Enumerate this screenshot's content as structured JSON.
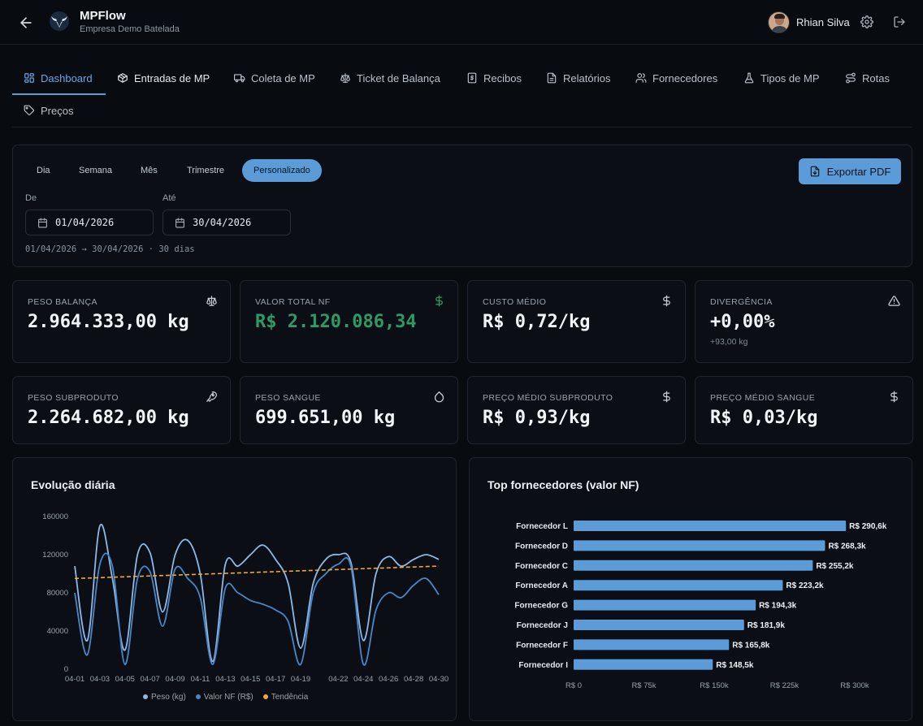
{
  "header": {
    "app_name": "MPFlow",
    "company": "Empresa Demo Batelada",
    "user_name": "Rhian Silva"
  },
  "nav": {
    "items": [
      {
        "label": "Dashboard",
        "icon": "layout-grid-icon",
        "active": true
      },
      {
        "label": "Entradas de MP",
        "icon": "package-icon"
      },
      {
        "label": "Coleta de MP",
        "icon": "truck-icon"
      },
      {
        "label": "Ticket de Balança",
        "icon": "scale-icon"
      },
      {
        "label": "Recibos",
        "icon": "receipt-icon"
      },
      {
        "label": "Relatórios",
        "icon": "file-text-icon"
      },
      {
        "label": "Fornecedores",
        "icon": "users-icon"
      },
      {
        "label": "Tipos de MP",
        "icon": "flask-icon"
      },
      {
        "label": "Rotas",
        "icon": "route-icon"
      },
      {
        "label": "Preços",
        "icon": "tag-icon"
      }
    ]
  },
  "filters": {
    "periods": [
      "Dia",
      "Semana",
      "Mês",
      "Trimestre",
      "Personalizado"
    ],
    "active_period": "Personalizado",
    "export_label": "Exportar PDF",
    "from_label": "De",
    "to_label": "Até",
    "from_value": "01/04/2026",
    "to_value": "30/04/2026",
    "range_summary": "01/04/2026 → 30/04/2026 · 30 dias"
  },
  "kpis": [
    {
      "label": "PESO BALANÇA",
      "value": "2.964.333,00 kg",
      "icon": "scale-icon"
    },
    {
      "label": "VALOR TOTAL NF",
      "value": "R$ 2.120.086,34",
      "icon": "dollar-icon",
      "accent": "#2f9a66"
    },
    {
      "label": "CUSTO MÉDIO",
      "value": "R$ 0,72/kg",
      "icon": "dollar-icon"
    },
    {
      "label": "DIVERGÊNCIA",
      "value": "+0,00%",
      "sub": "+93,00 kg",
      "icon": "alert-triangle-icon"
    },
    {
      "label": "PESO SUBPRODUTO",
      "value": "2.264.682,00 kg",
      "icon": "ham-icon"
    },
    {
      "label": "PESO SANGUE",
      "value": "699.651,00 kg",
      "icon": "droplet-icon"
    },
    {
      "label": "PREÇO MÉDIO SUBPRODUTO",
      "value": "R$ 0,93/kg",
      "icon": "dollar-icon"
    },
    {
      "label": "PREÇO MÉDIO SANGUE",
      "value": "R$ 0,03/kg",
      "icon": "dollar-icon"
    }
  ],
  "colors": {
    "accent": "#5b9bd8",
    "series_peso": "#8fb8e6",
    "series_valor": "#4a86c5",
    "trend": "#f0a830",
    "positive": "#2f9a66"
  },
  "chart_data": [
    {
      "type": "line",
      "title": "Evolução diária",
      "x": [
        "04-01",
        "04-02",
        "04-03",
        "04-04",
        "04-05",
        "04-06",
        "04-07",
        "04-08",
        "04-09",
        "04-10",
        "04-11",
        "04-12",
        "04-13",
        "04-14",
        "04-15",
        "04-16",
        "04-17",
        "04-18",
        "04-19",
        "04-20",
        "04-21",
        "04-22",
        "04-23",
        "04-24",
        "04-25",
        "04-26",
        "04-27",
        "04-28",
        "04-29",
        "04-30"
      ],
      "xticks": [
        "04-01",
        "04-03",
        "04-05",
        "04-07",
        "04-09",
        "04-11",
        "04-13",
        "04-15",
        "04-17",
        "04-19",
        "04-22",
        "04-24",
        "04-26",
        "04-28",
        "04-30"
      ],
      "ylim": [
        0,
        160000
      ],
      "yticks": [
        0,
        40000,
        80000,
        120000,
        160000
      ],
      "series": [
        {
          "name": "Peso (kg)",
          "values": [
            108000,
            30000,
            150000,
            95000,
            20000,
            120000,
            122000,
            60000,
            120000,
            135000,
            100000,
            8000,
            110000,
            108000,
            120000,
            130000,
            115000,
            90000,
            22000,
            90000,
            115000,
            120000,
            112000,
            30000,
            100000,
            118000,
            108000,
            115000,
            120000,
            115000
          ]
        },
        {
          "name": "Valor NF (R$)",
          "values": [
            80000,
            15000,
            110000,
            108000,
            5000,
            95000,
            102000,
            45000,
            105000,
            95000,
            75000,
            5000,
            85000,
            80000,
            72000,
            68000,
            62000,
            50000,
            5000,
            80000,
            100000,
            110000,
            108000,
            5000,
            62000,
            80000,
            75000,
            88000,
            95000,
            78000
          ]
        },
        {
          "name": "Tendência",
          "values": [
            95000,
            95500,
            96000,
            96500,
            97000,
            97500,
            98000,
            98500,
            99000,
            99500,
            100000,
            100300,
            100700,
            101000,
            101500,
            102000,
            102500,
            103000,
            103300,
            103700,
            104000,
            104500,
            105000,
            105500,
            106000,
            106300,
            106700,
            107000,
            107500,
            108000
          ]
        }
      ]
    },
    {
      "type": "bar",
      "orientation": "horizontal",
      "title": "Top fornecedores (valor NF)",
      "categories": [
        "Fornecedor L",
        "Fornecedor D",
        "Fornecedor C",
        "Fornecedor A",
        "Fornecedor G",
        "Fornecedor J",
        "Fornecedor F",
        "Fornecedor I"
      ],
      "values": [
        290600,
        268300,
        255200,
        223200,
        194300,
        181900,
        165800,
        148500
      ],
      "value_labels": [
        "R$ 290,6k",
        "R$ 268,3k",
        "R$ 255,2k",
        "R$ 223,2k",
        "R$ 194,3k",
        "R$ 181,9k",
        "R$ 165,8k",
        "R$ 148,5k"
      ],
      "xticks": [
        "R$ 0",
        "R$ 75k",
        "R$ 150k",
        "R$ 225k",
        "R$ 300k"
      ],
      "xlim": [
        0,
        300000
      ]
    }
  ]
}
